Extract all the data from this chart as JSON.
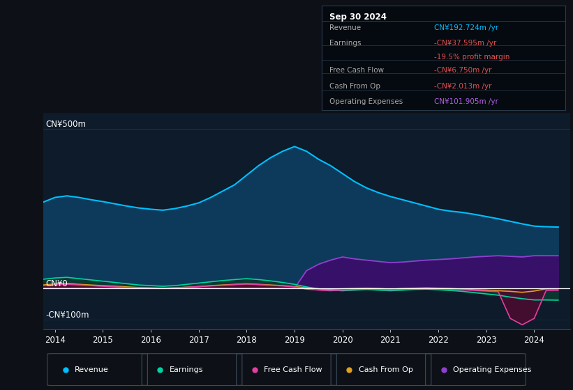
{
  "background_color": "#0d1117",
  "plot_bg_color": "#0d1b2a",
  "info_box": {
    "date": "Sep 30 2024",
    "rows": [
      {
        "label": "Revenue",
        "value": "CN¥192.724m /yr",
        "value_color": "#00bfff"
      },
      {
        "label": "Earnings",
        "value": "-CN¥37.595m /yr",
        "value_color": "#e05050"
      },
      {
        "label": "",
        "value": "-19.5% profit margin",
        "value_color": "#e05050"
      },
      {
        "label": "Free Cash Flow",
        "value": "-CN¥6.750m /yr",
        "value_color": "#e05050"
      },
      {
        "label": "Cash From Op",
        "value": "-CN¥2.013m /yr",
        "value_color": "#e05050"
      },
      {
        "label": "Operating Expenses",
        "value": "CN¥101.905m /yr",
        "value_color": "#b060e0"
      }
    ]
  },
  "years": [
    2013.75,
    2014.0,
    2014.25,
    2014.5,
    2014.75,
    2015.0,
    2015.25,
    2015.5,
    2015.75,
    2016.0,
    2016.25,
    2016.5,
    2016.75,
    2017.0,
    2017.25,
    2017.5,
    2017.75,
    2018.0,
    2018.25,
    2018.5,
    2018.75,
    2019.0,
    2019.25,
    2019.5,
    2019.75,
    2020.0,
    2020.25,
    2020.5,
    2020.75,
    2021.0,
    2021.25,
    2021.5,
    2021.75,
    2022.0,
    2022.25,
    2022.5,
    2022.75,
    2023.0,
    2023.25,
    2023.5,
    2023.75,
    2024.0,
    2024.25,
    2024.5
  ],
  "revenue": [
    270,
    285,
    290,
    285,
    278,
    272,
    265,
    258,
    252,
    248,
    245,
    250,
    258,
    268,
    285,
    305,
    325,
    355,
    385,
    410,
    430,
    445,
    430,
    405,
    385,
    360,
    335,
    315,
    300,
    288,
    278,
    268,
    258,
    248,
    242,
    238,
    232,
    225,
    218,
    210,
    202,
    195,
    193,
    192
  ],
  "earnings": [
    28,
    32,
    34,
    30,
    26,
    22,
    18,
    14,
    10,
    8,
    6,
    8,
    12,
    16,
    20,
    24,
    27,
    30,
    27,
    23,
    18,
    12,
    4,
    -2,
    -6,
    -8,
    -6,
    -4,
    -6,
    -8,
    -6,
    -4,
    -3,
    -5,
    -7,
    -10,
    -14,
    -18,
    -22,
    -28,
    -33,
    -37,
    -37,
    -37.6
  ],
  "free_cash_flow": [
    8,
    10,
    12,
    10,
    8,
    6,
    4,
    2,
    1,
    0,
    -1,
    1,
    3,
    5,
    7,
    9,
    11,
    13,
    11,
    9,
    7,
    4,
    -3,
    -6,
    -8,
    -6,
    -4,
    -2,
    -3,
    -5,
    -3,
    -2,
    -1,
    -2,
    -3,
    -5,
    -7,
    -9,
    -11,
    -95,
    -115,
    -95,
    -7,
    -6.75
  ],
  "cash_from_op": [
    10,
    13,
    15,
    12,
    10,
    8,
    6,
    4,
    2,
    1,
    0,
    1,
    3,
    5,
    8,
    10,
    12,
    14,
    12,
    10,
    8,
    5,
    1,
    -2,
    -3,
    -2,
    -1,
    0,
    -1,
    -3,
    -1,
    0,
    1,
    0,
    -1,
    -3,
    -5,
    -6,
    -8,
    -10,
    -13,
    -9,
    -2,
    -2.0
  ],
  "operating_expenses": [
    0,
    0,
    0,
    0,
    0,
    0,
    0,
    0,
    0,
    0,
    0,
    0,
    0,
    0,
    0,
    0,
    0,
    0,
    0,
    0,
    0,
    0,
    55,
    75,
    88,
    98,
    92,
    88,
    84,
    80,
    82,
    85,
    88,
    90,
    92,
    95,
    98,
    100,
    102,
    100,
    98,
    102,
    102,
    101.9
  ],
  "colors": {
    "revenue": "#00bfff",
    "revenue_fill": "#0d3a5a",
    "earnings": "#00d4a0",
    "earnings_fill": "#0a3a30",
    "free_cash_flow": "#e040a0",
    "free_cash_flow_fill": "#500a30",
    "cash_from_op": "#e0a020",
    "cash_from_op_fill": "#3a2800",
    "operating_expenses": "#9040d0",
    "operating_expenses_fill": "#3a0f6a"
  },
  "ylim": [
    -130,
    550
  ],
  "xlim": [
    2013.75,
    2024.75
  ],
  "ytick_vals": [
    -100,
    0,
    500
  ],
  "ytick_labels": [
    "-CN¥100m",
    "CN¥0",
    "CN¥500m"
  ],
  "xtick_years": [
    2014,
    2015,
    2016,
    2017,
    2018,
    2019,
    2020,
    2021,
    2022,
    2023,
    2024
  ],
  "legend_items": [
    {
      "label": "Revenue",
      "color": "#00bfff"
    },
    {
      "label": "Earnings",
      "color": "#00d4a0"
    },
    {
      "label": "Free Cash Flow",
      "color": "#e040a0"
    },
    {
      "label": "Cash From Op",
      "color": "#e0a020"
    },
    {
      "label": "Operating Expenses",
      "color": "#9040d0"
    }
  ]
}
